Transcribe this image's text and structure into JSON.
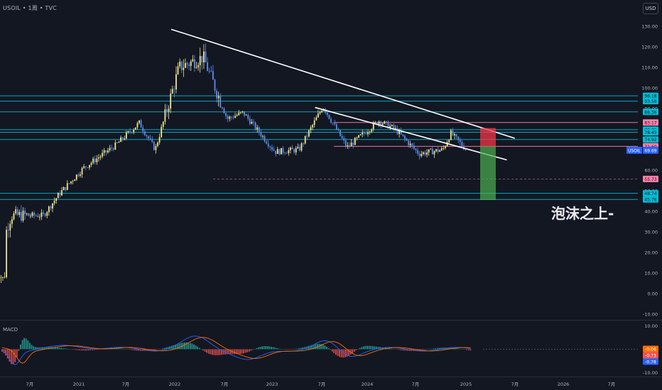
{
  "header": {
    "symbol": "USOIL",
    "interval": "1周",
    "source": "TVC",
    "sep": "•"
  },
  "currency_button": "USD",
  "watermark": "泡沫之上-",
  "macd_label": "MACD",
  "colors": {
    "bg": "#131722",
    "up": "#f0e68c",
    "down": "#5b8def",
    "cyan": "#00bcd4",
    "pink": "#ff80ab",
    "trend": "#ffffff",
    "macd_line": "#2962ff",
    "signal_line": "#ff6d00",
    "hist_pos": "#26a69a",
    "hist_neg": "#ef5350",
    "stop": "#f23645",
    "target": "#4caf50"
  },
  "chart_data": [
    {
      "type": "candlestick",
      "title": "USOIL · 1周 · TVC",
      "price_axis_ticks": [
        "130.00",
        "120.00",
        "110.00",
        "100.00",
        "90.00",
        "80.00",
        "70.00",
        "60.00",
        "50.00",
        "40.00",
        "30.00",
        "20.00",
        "10.00",
        "0.00",
        "-10.00"
      ],
      "time_axis_ticks": [
        "7月",
        "2021",
        "7月",
        "2022",
        "7月",
        "2023",
        "7月",
        "2024",
        "7月",
        "2025",
        "7月",
        "2026",
        "7月"
      ],
      "ylim": [
        -10,
        130
      ],
      "last_price_label": {
        "name": "USOIL",
        "value": "69.69"
      },
      "horizontal_levels": [
        {
          "value": 96.18,
          "label": "96.18",
          "color": "cyan"
        },
        {
          "value": 93.58,
          "label": "93.58",
          "color": "cyan"
        },
        {
          "value": 88.36,
          "label": "88.36",
          "color": "cyan"
        },
        {
          "value": 83.17,
          "label": "83.17",
          "color": "pink"
        },
        {
          "value": 79.71,
          "label": "79.71",
          "color": "cyan"
        },
        {
          "value": 78.45,
          "label": "78.45",
          "color": "cyan"
        },
        {
          "value": 74.92,
          "label": "74.92",
          "color": "cyan"
        },
        {
          "value": 71.6,
          "label": "71.60",
          "color": "pink"
        },
        {
          "value": 55.73,
          "label": "55.73",
          "color": "pink",
          "dashed": true
        },
        {
          "value": 48.74,
          "label": "48.74",
          "color": "cyan"
        },
        {
          "value": 45.78,
          "label": "45.78",
          "color": "cyan"
        }
      ],
      "trendlines": [
        {
          "from": [
            "2022-02",
            128.5
          ],
          "to": [
            "2025-09",
            75.5
          ]
        },
        {
          "from": [
            "2023-08",
            90.5
          ],
          "to": [
            "2025-08",
            65.0
          ]
        }
      ],
      "position_tool": {
        "entry": 71.6,
        "stop": 80.5,
        "target": 45.5
      },
      "price_path": [
        {
          "date": "2020-04",
          "close": 14.0
        },
        {
          "date": "2020-06",
          "close": 38.0
        },
        {
          "date": "2020-10",
          "close": 38.0
        },
        {
          "date": "2020-12",
          "close": 48.5
        },
        {
          "date": "2021-03",
          "close": 61.0
        },
        {
          "date": "2021-07",
          "close": 72.0
        },
        {
          "date": "2021-10",
          "close": 83.0
        },
        {
          "date": "2021-12",
          "close": 70.0
        },
        {
          "date": "2022-03",
          "close": 110.0
        },
        {
          "date": "2022-06",
          "close": 115.0
        },
        {
          "date": "2022-09",
          "close": 85.0
        },
        {
          "date": "2022-11",
          "close": 88.0
        },
        {
          "date": "2023-03",
          "close": 69.0
        },
        {
          "date": "2023-06",
          "close": 70.0
        },
        {
          "date": "2023-09",
          "close": 91.0
        },
        {
          "date": "2023-12",
          "close": 71.0
        },
        {
          "date": "2024-04",
          "close": 84.0
        },
        {
          "date": "2024-06",
          "close": 80.0
        },
        {
          "date": "2024-09",
          "close": 68.0
        },
        {
          "date": "2024-12",
          "close": 70.0
        },
        {
          "date": "2025-01",
          "close": 78.0
        },
        {
          "date": "2025-03",
          "close": 69.7
        }
      ]
    },
    {
      "type": "line",
      "name": "MACD",
      "ylim": [
        -10,
        10
      ],
      "price_axis_ticks": [
        "10.00",
        "0.00",
        "-10.00"
      ],
      "value_labels": [
        {
          "label": "-0.06",
          "color": "#ff6d00"
        },
        {
          "label": "-0.73",
          "color": "#ef5350"
        },
        {
          "label": "-0.78",
          "color": "#2962ff"
        }
      ]
    }
  ]
}
